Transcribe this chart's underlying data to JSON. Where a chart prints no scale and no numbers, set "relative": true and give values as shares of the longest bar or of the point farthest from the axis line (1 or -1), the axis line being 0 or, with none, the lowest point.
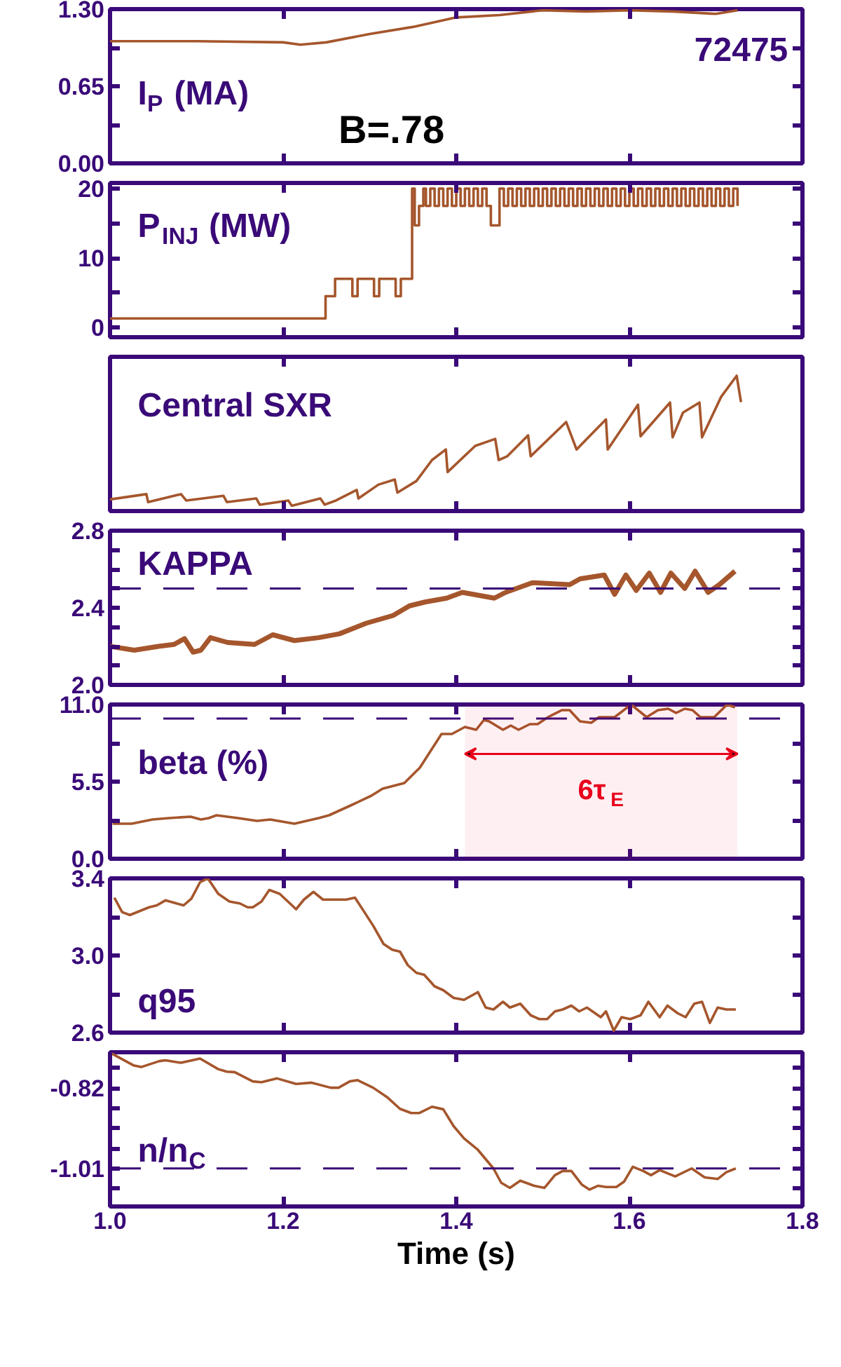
{
  "chart_data": [
    {
      "type": "line",
      "title": "I$_{P}$ (MA)",
      "annotations": [
        "72475",
        "B=.78"
      ],
      "xlim": [
        1.0,
        1.8
      ],
      "xticks": [
        1.2,
        1.4,
        1.6
      ],
      "ylim": [
        0,
        1.3
      ],
      "yticks": [
        {
          "value": 0,
          "label": "0.00"
        },
        {
          "value": 0.325,
          "label": null
        },
        {
          "value": 0.65,
          "label": "0.65"
        },
        {
          "value": 0.975,
          "label": null
        },
        {
          "value": 1.3,
          "label": "1.30"
        }
      ],
      "tick_labels": "y",
      "grid": false,
      "series": [
        {
          "color": "#a5562c",
          "x": [
            1.0,
            1.1,
            1.2,
            1.22,
            1.25,
            1.3,
            1.35,
            1.4,
            1.45,
            1.5,
            1.55,
            1.6,
            1.65,
            1.7,
            1.725
          ],
          "values": [
            1.03,
            1.03,
            1.02,
            1.0,
            1.02,
            1.09,
            1.15,
            1.23,
            1.25,
            1.29,
            1.28,
            1.29,
            1.28,
            1.26,
            1.29
          ]
        }
      ]
    },
    {
      "type": "step",
      "title": "P$_{INJ}$ (MW)",
      "xlim": [
        1.0,
        1.8
      ],
      "xticks": [
        1.2,
        1.4,
        1.6
      ],
      "ylim": [
        -1.4,
        20.8
      ],
      "yticks": [
        0,
        {
          "value": 5,
          "label": null
        },
        10,
        {
          "value": 15,
          "label": null
        },
        20
      ],
      "tick_labels": "y",
      "grid": false,
      "series": [
        {
          "color": "#a5562c",
          "x": [
            1.0,
            1.249,
            1.26,
            1.28,
            1.286,
            1.305,
            1.311,
            1.33,
            1.336,
            1.349,
            1.352,
            1.357,
            1.362,
            1.365,
            1.37,
            1.375,
            1.38,
            1.385,
            1.39,
            1.395,
            1.4,
            1.405,
            1.41,
            1.415,
            1.42,
            1.425,
            1.43,
            1.435,
            1.44,
            1.45,
            1.455,
            1.46,
            1.465,
            1.47,
            1.475,
            1.48,
            1.485,
            1.49,
            1.495,
            1.5,
            1.505,
            1.51,
            1.515,
            1.52,
            1.525,
            1.53,
            1.535,
            1.54,
            1.545,
            1.55,
            1.555,
            1.56,
            1.565,
            1.57,
            1.575,
            1.58,
            1.585,
            1.59,
            1.595,
            1.6,
            1.605,
            1.61,
            1.615,
            1.62,
            1.625,
            1.63,
            1.635,
            1.64,
            1.645,
            1.65,
            1.655,
            1.66,
            1.665,
            1.67,
            1.675,
            1.68,
            1.685,
            1.69,
            1.695,
            1.7,
            1.705,
            1.71,
            1.715,
            1.72,
            1.725
          ],
          "values": [
            1.3,
            4.5,
            7.0,
            4.5,
            7.0,
            4.5,
            7.0,
            4.5,
            7.0,
            20,
            14.7,
            17.5,
            20,
            17.5,
            20,
            17.5,
            20,
            17.5,
            20,
            17.5,
            20,
            17.5,
            20,
            17.5,
            20,
            17.5,
            20,
            17.5,
            14.7,
            20,
            17.5,
            20,
            17.5,
            20,
            17.5,
            20,
            17.5,
            20,
            17.5,
            20,
            17.5,
            20,
            17.5,
            20,
            17.5,
            20,
            17.5,
            20,
            17.5,
            20,
            17.5,
            20,
            17.5,
            20,
            17.5,
            20,
            17.5,
            20,
            17.5,
            20,
            17.5,
            20,
            17.5,
            20,
            17.5,
            20,
            17.5,
            20,
            17.5,
            20,
            17.5,
            20,
            17.5,
            20,
            17.5,
            20,
            17.5,
            20,
            17.5,
            20,
            17.5,
            20,
            17.5,
            20,
            17.5
          ]
        }
      ]
    },
    {
      "type": "line",
      "title": "Central SXR",
      "relative": true,
      "xlim": [
        1.0,
        1.8
      ],
      "xticks": [
        1.2,
        1.4,
        1.6
      ],
      "tick_labels": false,
      "grid": false,
      "series": [
        {
          "color": "#a5562c",
          "x": [
            1.0,
            1.042,
            1.044,
            1.082,
            1.088,
            1.131,
            1.135,
            1.169,
            1.173,
            1.206,
            1.21,
            1.243,
            1.248,
            1.261,
            1.285,
            1.287,
            1.31,
            1.329,
            1.332,
            1.354,
            1.372,
            1.388,
            1.39,
            1.422,
            1.445,
            1.449,
            1.459,
            1.483,
            1.486,
            1.527,
            1.539,
            1.548,
            1.573,
            1.575,
            1.61,
            1.613,
            1.647,
            1.65,
            1.662,
            1.681,
            1.684,
            1.706,
            1.724,
            1.729
          ],
          "values": [
            0.086,
            0.125,
            0.066,
            0.125,
            0.078,
            0.113,
            0.066,
            0.093,
            0.047,
            0.078,
            0.039,
            0.093,
            0.047,
            0.078,
            0.156,
            0.093,
            0.195,
            0.233,
            0.136,
            0.222,
            0.377,
            0.455,
            0.288,
            0.482,
            0.533,
            0.377,
            0.405,
            0.56,
            0.405,
            0.658,
            0.455,
            0.514,
            0.677,
            0.455,
            0.786,
            0.553,
            0.802,
            0.545,
            0.728,
            0.802,
            0.545,
            0.844,
            1.0,
            0.805
          ]
        }
      ]
    },
    {
      "type": "line",
      "title": "KAPPA",
      "xlim": [
        1.0,
        1.8
      ],
      "xticks": [
        1.2,
        1.4,
        1.6
      ],
      "ylim": [
        2.0,
        2.8
      ],
      "yticks": [
        {
          "value": 2.0,
          "label": "2.0"
        },
        {
          "value": 2.1,
          "label": null
        },
        {
          "value": 2.2,
          "label": null
        },
        {
          "value": 2.3,
          "label": null
        },
        2.4,
        {
          "value": 2.5,
          "label": null
        },
        {
          "value": 2.6,
          "label": null
        },
        {
          "value": 2.7,
          "label": null
        },
        2.8
      ],
      "tick_labels": "y",
      "grid": false,
      "ref_lines": [
        {
          "axis": "y",
          "value": 2.5,
          "label": null,
          "color": "#3a0a78",
          "line_style": "dashed"
        }
      ],
      "series": [
        {
          "color": "#a5562c",
          "x": [
            1.0,
            1.028,
            1.056,
            1.074,
            1.086,
            1.096,
            1.105,
            1.116,
            1.136,
            1.167,
            1.188,
            1.213,
            1.241,
            1.265,
            1.296,
            1.327,
            1.346,
            1.364,
            1.389,
            1.407,
            1.444,
            1.457,
            1.488,
            1.531,
            1.543,
            1.571,
            1.583,
            1.596,
            1.608,
            1.623,
            1.636,
            1.648,
            1.664,
            1.676,
            1.691,
            1.704,
            1.722
          ],
          "values": [
            2.2,
            2.18,
            2.2,
            2.21,
            2.24,
            2.17,
            2.18,
            2.245,
            2.22,
            2.21,
            2.26,
            2.23,
            2.245,
            2.265,
            2.32,
            2.36,
            2.41,
            2.43,
            2.45,
            2.48,
            2.45,
            2.48,
            2.53,
            2.52,
            2.55,
            2.57,
            2.47,
            2.57,
            2.49,
            2.58,
            2.48,
            2.58,
            2.5,
            2.59,
            2.48,
            2.52,
            2.59
          ]
        }
      ]
    },
    {
      "type": "line",
      "title": "beta (%)",
      "xlim": [
        1.0,
        1.8
      ],
      "xticks": [
        1.2,
        1.4,
        1.6
      ],
      "ylim": [
        0,
        11.0
      ],
      "yticks": [
        {
          "value": 0,
          "label": "0.0"
        },
        {
          "value": 2.75,
          "label": null
        },
        5.5,
        {
          "value": 8.25,
          "label": null
        },
        {
          "value": 11.0,
          "label": "11.0"
        }
      ],
      "tick_labels": "y",
      "grid": false,
      "ref_lines": [
        {
          "axis": "y",
          "value": 10.0,
          "label": null,
          "color": "#3a0a78",
          "line_style": "dashed"
        }
      ],
      "bands": [
        {
          "axis": "x",
          "from": 1.41,
          "to": 1.725,
          "label": "6τ$_{E}$",
          "color": "#e8001c"
        }
      ],
      "series": [
        {
          "color": "#a5562c",
          "x": [
            1.003,
            1.025,
            1.049,
            1.068,
            1.093,
            1.105,
            1.114,
            1.123,
            1.148,
            1.17,
            1.185,
            1.213,
            1.241,
            1.253,
            1.278,
            1.302,
            1.315,
            1.34,
            1.358,
            1.383,
            1.395,
            1.41,
            1.423,
            1.432,
            1.438,
            1.454,
            1.463,
            1.472,
            1.485,
            1.494,
            1.506,
            1.522,
            1.531,
            1.543,
            1.556,
            1.565,
            1.583,
            1.602,
            1.62,
            1.633,
            1.645,
            1.654,
            1.664,
            1.673,
            1.682,
            1.698,
            1.713,
            1.722
          ],
          "values": [
            2.5,
            2.5,
            2.8,
            2.9,
            3.0,
            2.8,
            2.9,
            3.1,
            2.9,
            2.7,
            2.8,
            2.5,
            2.9,
            3.1,
            3.8,
            4.5,
            5.0,
            5.4,
            6.5,
            8.9,
            8.9,
            9.4,
            9.2,
            9.9,
            9.8,
            9.2,
            9.5,
            9.2,
            9.6,
            9.6,
            10.1,
            10.6,
            10.6,
            9.8,
            9.7,
            10.1,
            10.1,
            11.0,
            10.1,
            10.6,
            10.7,
            10.4,
            10.7,
            10.6,
            10.1,
            10.1,
            11.0,
            10.8
          ]
        }
      ]
    },
    {
      "type": "line",
      "title": "q95",
      "xlim": [
        1.0,
        1.8
      ],
      "xticks": [
        1.2,
        1.4,
        1.6
      ],
      "ylim": [
        2.6,
        3.4
      ],
      "yticks": [
        2.6,
        {
          "value": 2.8,
          "label": null
        },
        {
          "value": 3.0,
          "label": "3.0"
        },
        {
          "value": 3.2,
          "label": null
        },
        3.4
      ],
      "tick_labels": "y",
      "grid": false,
      "series": [
        {
          "color": "#a5562c",
          "x": [
            1.005,
            1.014,
            1.023,
            1.045,
            1.054,
            1.064,
            1.085,
            1.094,
            1.104,
            1.113,
            1.125,
            1.138,
            1.15,
            1.159,
            1.165,
            1.175,
            1.184,
            1.196,
            1.215,
            1.224,
            1.235,
            1.246,
            1.273,
            1.283,
            1.304,
            1.316,
            1.326,
            1.335,
            1.344,
            1.354,
            1.363,
            1.375,
            1.385,
            1.397,
            1.409,
            1.425,
            1.434,
            1.443,
            1.454,
            1.462,
            1.474,
            1.486,
            1.496,
            1.505,
            1.514,
            1.523,
            1.533,
            1.542,
            1.551,
            1.567,
            1.573,
            1.582,
            1.591,
            1.601,
            1.613,
            1.622,
            1.635,
            1.644,
            1.656,
            1.665,
            1.675,
            1.684,
            1.693,
            1.702,
            1.712,
            1.723
          ],
          "values": [
            3.3,
            3.225,
            3.21,
            3.25,
            3.26,
            3.286,
            3.26,
            3.295,
            3.38,
            3.4,
            3.32,
            3.28,
            3.27,
            3.25,
            3.25,
            3.28,
            3.34,
            3.32,
            3.24,
            3.29,
            3.33,
            3.29,
            3.29,
            3.3,
            3.155,
            3.06,
            3.03,
            3.02,
            2.95,
            2.91,
            2.9,
            2.84,
            2.82,
            2.78,
            2.77,
            2.81,
            2.73,
            2.72,
            2.76,
            2.73,
            2.75,
            2.69,
            2.67,
            2.67,
            2.71,
            2.72,
            2.74,
            2.71,
            2.73,
            2.68,
            2.71,
            2.61,
            2.68,
            2.67,
            2.69,
            2.76,
            2.68,
            2.74,
            2.7,
            2.68,
            2.75,
            2.76,
            2.65,
            2.73,
            2.72,
            2.72
          ]
        }
      ]
    },
    {
      "type": "line",
      "title": "n/n$_{C}$",
      "xlabel": "Time (s)",
      "xlim": [
        1.0,
        1.8
      ],
      "xticks": [
        {
          "value": 1.0,
          "label": "1.0"
        },
        1.2,
        1.4,
        1.6,
        1.8
      ],
      "ylim": [
        -1.1,
        -0.735
      ],
      "yticks": [
        {
          "value": -1.0575,
          "label": null
        },
        -1.01,
        {
          "value": -0.9625,
          "label": null
        },
        {
          "value": -0.915,
          "label": null
        },
        {
          "value": -0.8675,
          "label": null
        },
        -0.82,
        {
          "value": -0.7725,
          "label": null
        }
      ],
      "grid": false,
      "ref_lines": [
        {
          "axis": "y",
          "value": -1.01,
          "label": null,
          "color": "#3a0a78",
          "line_style": "dashed"
        }
      ],
      "series": [
        {
          "color": "#a5562c",
          "x": [
            1.002,
            1.027,
            1.036,
            1.057,
            1.064,
            1.082,
            1.104,
            1.125,
            1.135,
            1.144,
            1.165,
            1.175,
            1.193,
            1.215,
            1.233,
            1.255,
            1.264,
            1.277,
            1.286,
            1.304,
            1.32,
            1.335,
            1.348,
            1.357,
            1.372,
            1.385,
            1.397,
            1.409,
            1.425,
            1.443,
            1.452,
            1.462,
            1.474,
            1.49,
            1.502,
            1.514,
            1.523,
            1.533,
            1.545,
            1.554,
            1.564,
            1.573,
            1.585,
            1.594,
            1.604,
            1.616,
            1.625,
            1.635,
            1.653,
            1.672,
            1.687,
            1.702,
            1.712,
            1.723
          ],
          "values": [
            -0.738,
            -0.766,
            -0.77,
            -0.756,
            -0.754,
            -0.76,
            -0.75,
            -0.775,
            -0.781,
            -0.782,
            -0.804,
            -0.806,
            -0.797,
            -0.81,
            -0.807,
            -0.819,
            -0.819,
            -0.804,
            -0.801,
            -0.819,
            -0.841,
            -0.869,
            -0.879,
            -0.879,
            -0.864,
            -0.87,
            -0.91,
            -0.939,
            -0.966,
            -1.01,
            -1.044,
            -1.056,
            -1.039,
            -1.051,
            -1.056,
            -1.026,
            -1.016,
            -1.016,
            -1.048,
            -1.06,
            -1.051,
            -1.054,
            -1.054,
            -1.041,
            -1.006,
            -1.016,
            -1.026,
            -1.014,
            -1.029,
            -1.01,
            -1.031,
            -1.035,
            -1.019,
            -1.01
          ]
        }
      ]
    }
  ]
}
